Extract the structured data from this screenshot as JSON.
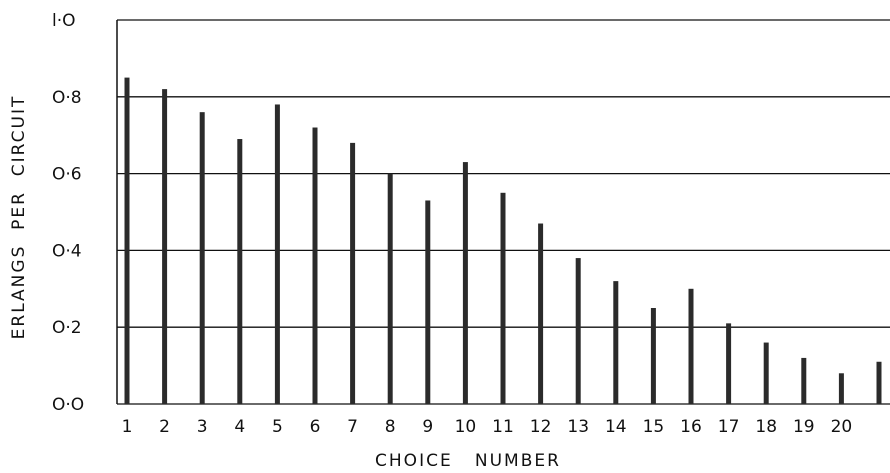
{
  "chart_data": {
    "type": "bar",
    "title": "",
    "xlabel": "CHOICE   NUMBER",
    "ylabel": "ERLANGS  PER  CIRCUIT",
    "categories": [
      "1",
      "2",
      "3",
      "4",
      "5",
      "6",
      "7",
      "8",
      "9",
      "10",
      "11",
      "12",
      "13",
      "14",
      "15",
      "16",
      "17",
      "18",
      "19",
      "20",
      ""
    ],
    "values": [
      0.85,
      0.82,
      0.76,
      0.69,
      0.78,
      0.72,
      0.68,
      0.6,
      0.53,
      0.63,
      0.55,
      0.47,
      0.38,
      0.32,
      0.25,
      0.3,
      0.21,
      0.16,
      0.12,
      0.08,
      0.11
    ],
    "ylim": [
      0,
      1.0
    ],
    "yticks": [
      {
        "value": 0.0,
        "label": "O·O"
      },
      {
        "value": 0.2,
        "label": "O·2"
      },
      {
        "value": 0.4,
        "label": "O·4"
      },
      {
        "value": 0.6,
        "label": "O·6"
      },
      {
        "value": 0.8,
        "label": "O·8"
      },
      {
        "value": 1.0,
        "label": "l·O"
      }
    ],
    "grid": true,
    "bar_color": "#2b2b2b",
    "grid_color": "#111111"
  }
}
